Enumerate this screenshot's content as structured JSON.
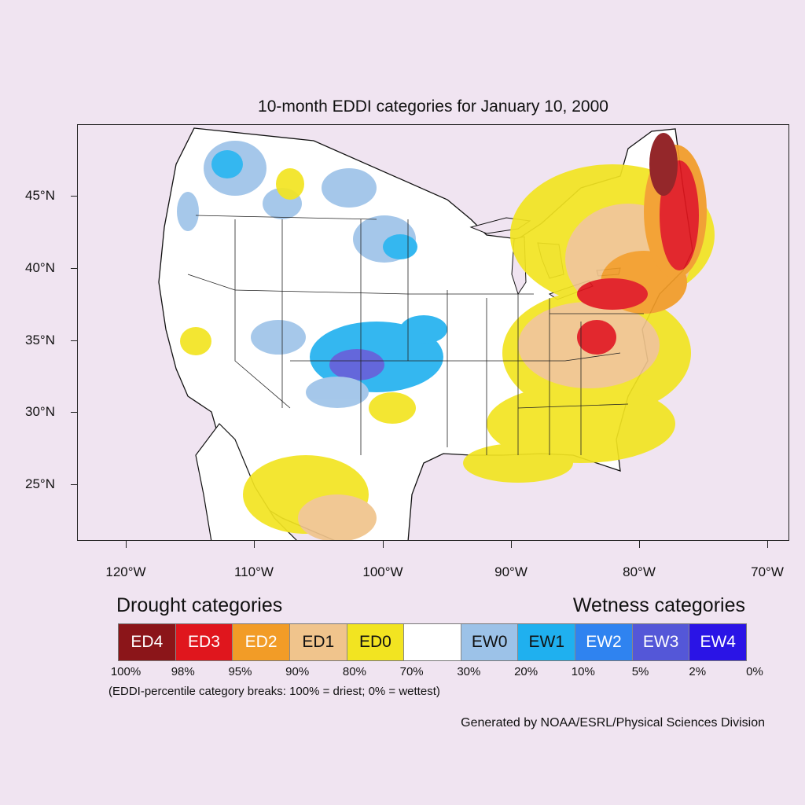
{
  "title": "10-month EDDI categories for January 10, 2000",
  "map": {
    "lat_ticks": [
      "45°N",
      "40°N",
      "35°N",
      "30°N",
      "25°N"
    ],
    "lon_ticks": [
      "120°W",
      "110°W",
      "100°W",
      "90°W",
      "80°W",
      "70°W"
    ]
  },
  "legend": {
    "drought_heading": "Drought categories",
    "wetness_heading": "Wetness categories",
    "categories": [
      {
        "label": "ED4",
        "color": "#8b1519",
        "text_color": "#ffffff"
      },
      {
        "label": "ED3",
        "color": "#e0161d",
        "text_color": "#ffffff"
      },
      {
        "label": "ED2",
        "color": "#f29c27",
        "text_color": "#ffffff"
      },
      {
        "label": "ED1",
        "color": "#f0c48c",
        "text_color": "#111111"
      },
      {
        "label": "ED0",
        "color": "#f2e421",
        "text_color": "#111111"
      },
      {
        "label": "",
        "color": "#ffffff",
        "text_color": "#111111"
      },
      {
        "label": "EW0",
        "color": "#9cc2e8",
        "text_color": "#111111"
      },
      {
        "label": "EW1",
        "color": "#1fb0ef",
        "text_color": "#111111"
      },
      {
        "label": "EW2",
        "color": "#2f83f0",
        "text_color": "#ffffff"
      },
      {
        "label": "EW3",
        "color": "#5457d8",
        "text_color": "#ffffff"
      },
      {
        "label": "EW4",
        "color": "#2a14e6",
        "text_color": "#ffffff"
      }
    ],
    "breaks": [
      "100%",
      "98%",
      "95%",
      "90%",
      "80%",
      "70%",
      "30%",
      "20%",
      "10%",
      "5%",
      "2%",
      "0%"
    ],
    "note": "(EDDI-percentile category breaks: 100% = driest; 0% = wettest)"
  },
  "credit": "Generated by NOAA/ESRL/Physical Sciences Division"
}
